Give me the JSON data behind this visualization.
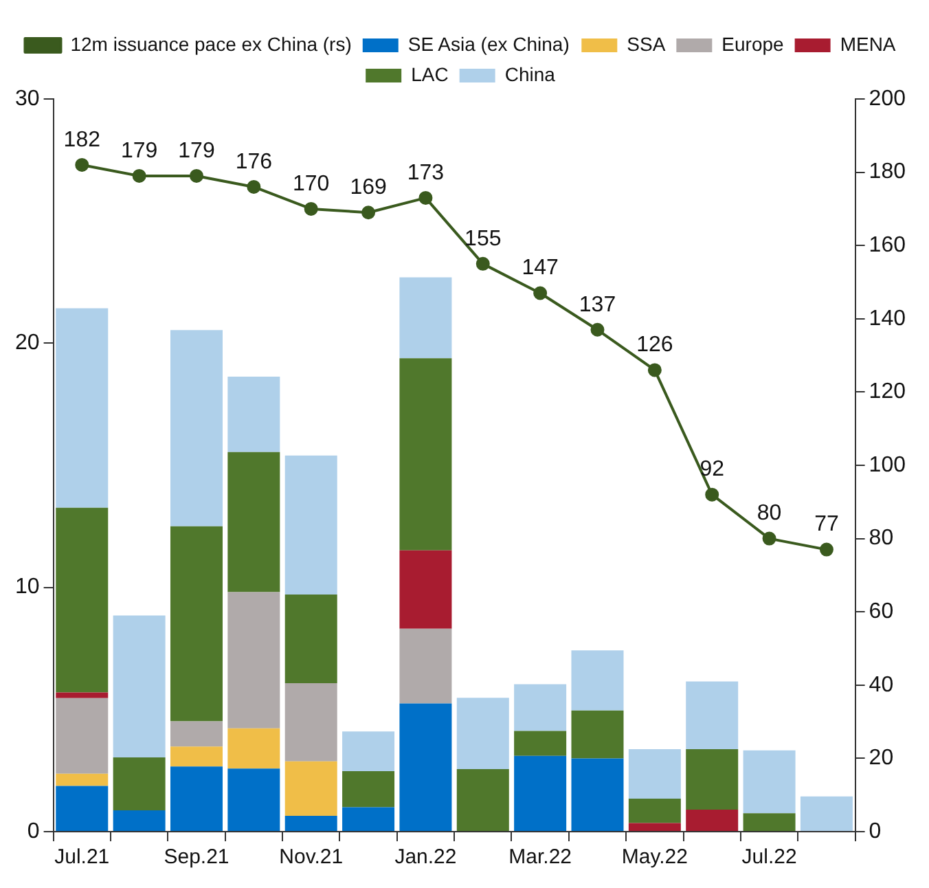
{
  "chart_data": {
    "type": "bar",
    "stacked": true,
    "categories": [
      "Jul.21",
      null,
      "Sep.21",
      null,
      "Nov.21",
      null,
      "Jan.22",
      null,
      "Mar.22",
      null,
      "May.22",
      null,
      "Jul.22",
      null
    ],
    "series": [
      {
        "name": "SE Asia (ex China)",
        "color": "#0070c8",
        "values": [
          1.87,
          0.87,
          2.67,
          2.58,
          0.65,
          1.0,
          5.25,
          0,
          3.1,
          3.0,
          0,
          0,
          0,
          0
        ]
      },
      {
        "name": "SSA",
        "color": "#f0be48",
        "values": [
          0.5,
          0,
          0.81,
          1.65,
          2.23,
          0,
          0,
          0,
          0,
          0,
          0,
          0,
          0,
          0
        ]
      },
      {
        "name": "Europe",
        "color": "#b0aaaa",
        "values": [
          3.1,
          0,
          1.04,
          5.58,
          3.2,
          0,
          3.06,
          0,
          0,
          0,
          0,
          0,
          0,
          0
        ]
      },
      {
        "name": "MENA",
        "color": "#a81c30",
        "values": [
          0.23,
          0,
          0,
          0,
          0,
          0,
          3.21,
          0,
          0,
          0,
          0.35,
          0.9,
          0,
          0
        ]
      },
      {
        "name": "LAC",
        "color": "#50782c",
        "values": [
          7.56,
          2.17,
          7.98,
          5.73,
          3.63,
          1.48,
          7.86,
          2.56,
          1.02,
          1.96,
          1.0,
          2.48,
          0.75,
          0
        ]
      },
      {
        "name": "China",
        "color": "#afd0ea",
        "values": [
          8.17,
          5.81,
          8.04,
          3.09,
          5.69,
          1.62,
          3.32,
          2.92,
          1.92,
          2.46,
          2.03,
          2.77,
          2.58,
          1.44
        ]
      },
      {
        "name": "12m issuance pace ex China (rs)",
        "type": "line",
        "axis": "y2",
        "color": "#3a5a1e",
        "marker": "circle",
        "values": [
          182,
          179,
          179,
          176,
          170,
          169,
          173,
          155,
          147,
          137,
          126,
          92,
          80,
          77
        ],
        "value_labels": [
          "182",
          "179",
          "179",
          "176",
          "170",
          "169",
          "173",
          "155",
          "147",
          "137",
          "126",
          "92",
          "80",
          "77"
        ]
      }
    ],
    "ylim": [
      0,
      30
    ],
    "yticks": [
      0,
      10,
      20,
      30
    ],
    "y2lim": [
      0,
      200
    ],
    "y2ticks": [
      0,
      20,
      40,
      60,
      80,
      100,
      120,
      140,
      160,
      180,
      200
    ],
    "grid": false,
    "legend": "top"
  }
}
